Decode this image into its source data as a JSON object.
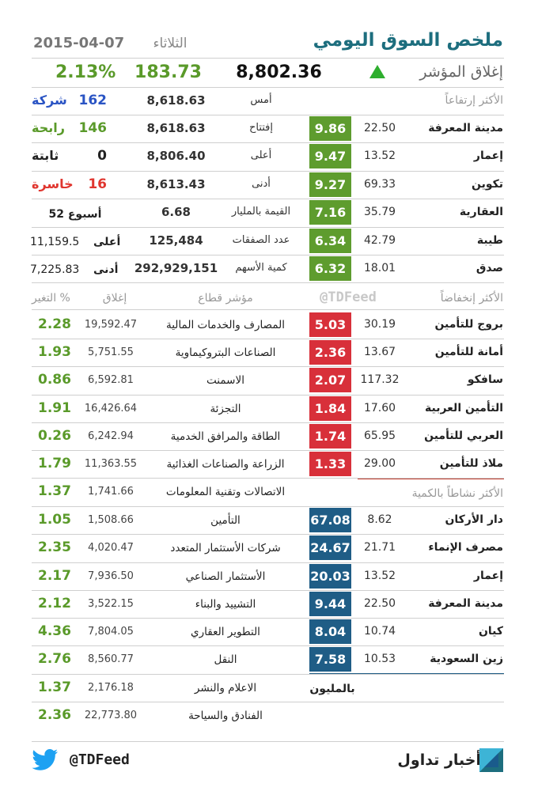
{
  "header": {
    "title": "ملخص السوق اليومي",
    "day": "الثلاثاء",
    "date": "2015-04-07"
  },
  "index": {
    "label": "إغلاق المؤشر",
    "close": "8,802.36",
    "change": "183.73",
    "change_pct": "2.13%"
  },
  "stats": [
    {
      "label": "أمس",
      "value": "8,618.63"
    },
    {
      "label": "إفتتاح",
      "value": "8,618.63"
    },
    {
      "label": "أعلى",
      "value": "8,806.40"
    },
    {
      "label": "أدنى",
      "value": "8,613.43"
    },
    {
      "label": "القيمة بالمليار",
      "value": "6.68"
    },
    {
      "label": "عدد الصفقات",
      "value": "125,484"
    },
    {
      "label": "كمية الأسهم",
      "value": "292,929,151"
    }
  ],
  "breadth": [
    {
      "count": "162",
      "label": "شركة"
    },
    {
      "count": "146",
      "label": "رابحة"
    },
    {
      "count": "0",
      "label": "ثابتة"
    },
    {
      "count": "16",
      "label": "خاسرة"
    }
  ],
  "week52": {
    "label": "أسبوع",
    "num": "52",
    "high_label": "أعلى",
    "high": "11,159.5",
    "low_label": "أدنى",
    "low": "7,225.83"
  },
  "gainers": {
    "header": "الأكثر إرتفاعاً",
    "rows": [
      {
        "name": "مدينة المعرفة",
        "price": "22.50",
        "value": "9.86"
      },
      {
        "name": "إعمار",
        "price": "13.52",
        "value": "9.47"
      },
      {
        "name": "تكوين",
        "price": "69.33",
        "value": "9.27"
      },
      {
        "name": "العقارية",
        "price": "35.79",
        "value": "7.16"
      },
      {
        "name": "طيبة",
        "price": "42.79",
        "value": "6.34"
      },
      {
        "name": "صدق",
        "price": "18.01",
        "value": "6.32"
      }
    ]
  },
  "watermark": "@TDFeed",
  "losers": {
    "header": "الأكثر إنخفاضاً",
    "rows": [
      {
        "name": "بروج للتأمين",
        "price": "30.19",
        "value": "5.03"
      },
      {
        "name": "أمانة للتأمين",
        "price": "13.67",
        "value": "2.36"
      },
      {
        "name": "سافكو",
        "price": "117.32",
        "value": "2.07"
      },
      {
        "name": "التأمين العربية",
        "price": "17.60",
        "value": "1.84"
      },
      {
        "name": "العربي للتأمين",
        "price": "65.95",
        "value": "1.74"
      },
      {
        "name": "ملاذ للتأمين",
        "price": "29.00",
        "value": "1.33"
      }
    ]
  },
  "active": {
    "header": "الأكثر نشاطاً بالكمية",
    "rows": [
      {
        "name": "دار الأركان",
        "price": "8.62",
        "value": "67.08"
      },
      {
        "name": "مصرف الإنماء",
        "price": "21.71",
        "value": "24.67"
      },
      {
        "name": "إعمار",
        "price": "13.52",
        "value": "20.03"
      },
      {
        "name": "مدينة المعرفة",
        "price": "22.50",
        "value": "9.44"
      },
      {
        "name": "كيان",
        "price": "10.74",
        "value": "8.04"
      },
      {
        "name": "زين السعودية",
        "price": "10.53",
        "value": "7.58"
      }
    ],
    "unit": "بالمليون"
  },
  "sectors": {
    "header": {
      "name": "مؤشر قطاع",
      "close": "إغلاق",
      "change": "التغير %"
    },
    "rows": [
      {
        "name": "المصارف والخدمات المالية",
        "close": "19,592.47",
        "change": "2.28"
      },
      {
        "name": "الصناعات البتروكيماوية",
        "close": "5,751.55",
        "change": "1.93"
      },
      {
        "name": "الاسمنت",
        "close": "6,592.81",
        "change": "0.86"
      },
      {
        "name": "التجزئة",
        "close": "16,426.64",
        "change": "1.91"
      },
      {
        "name": "الطاقة والمرافق الخدمية",
        "close": "6,242.94",
        "change": "0.26"
      },
      {
        "name": "الزراعة والصناعات الغذائية",
        "close": "11,363.55",
        "change": "1.79"
      },
      {
        "name": "الاتصالات وتقنية المعلومات",
        "close": "1,741.66",
        "change": "1.37"
      },
      {
        "name": "التأمين",
        "close": "1,508.66",
        "change": "1.05"
      },
      {
        "name": "شركات الأستثمار المتعدد",
        "close": "4,020.47",
        "change": "2.35"
      },
      {
        "name": "الأستثمار الصناعي",
        "close": "7,936.50",
        "change": "2.17"
      },
      {
        "name": "التشييد والبناء",
        "close": "3,522.15",
        "change": "2.12"
      },
      {
        "name": "التطوير العقاري",
        "close": "7,804.05",
        "change": "4.36"
      },
      {
        "name": "النقل",
        "close": "8,560.77",
        "change": "2.76"
      },
      {
        "name": "الاعلام والنشر",
        "close": "2,176.18",
        "change": "1.37"
      },
      {
        "name": "الفنادق والسياحة",
        "close": "22,773.80",
        "change": "2.36"
      }
    ]
  },
  "footer": {
    "handle": "@TDFeed",
    "brand": "أخبار تداول"
  },
  "colors": {
    "green": "#5e9c2e",
    "red": "#d8303a",
    "blue": "#1f5d86",
    "title": "#1d6e7e"
  }
}
